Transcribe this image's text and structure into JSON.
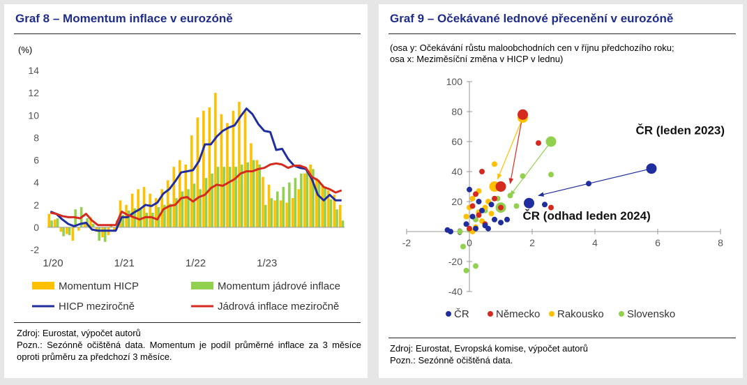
{
  "graf8": {
    "title": "Graf 8 – Momentum inflace v eurozóně",
    "source": "Zdroj: Eurostat, výpočet autorů",
    "note": "Pozn.: Sezónně očištěná data. Momentum je podíl průměrné inflace za 3 měsíce oproti průměru za předchozí 3 měsíce.",
    "colors": {
      "hicp_momentum": "#ffc000",
      "core_momentum": "#92d050",
      "hicp_yoy": "#1f2d9e",
      "core_yoy": "#d42a20"
    }
  },
  "graf9": {
    "title": "Graf 9 – Očekávané lednové přecenění v eurozóně",
    "axis_note_y": "(osa y: Očekávání růstu maloobchodních cen v říjnu předchozího roku;",
    "axis_note_x": "osa x: Meziměsíční změna v HICP v lednu)",
    "source": "Zdroj: Eurostat, Evropská komise, výpočet autorů",
    "note": "Pozn.: Sezónně očištěná data.",
    "colors": {
      "cr": "#1f2d9e",
      "nemecko": "#d42a20",
      "rakousko": "#ffc000",
      "slovensko": "#92d050"
    }
  },
  "chart_data": [
    {
      "type": "bar",
      "ylabel": "(%)",
      "ylim": [
        -2,
        14
      ],
      "yticks": [
        -2,
        0,
        2,
        4,
        6,
        8,
        10,
        12,
        14
      ],
      "x_tick_labels": [
        "1/20",
        "1/21",
        "1/22",
        "1/23"
      ],
      "x_tick_index": [
        0,
        12,
        24,
        36
      ],
      "legend_position": "bottom",
      "series": [
        {
          "name": "Momentum HICP",
          "kind": "bar",
          "values": [
            1.2,
            0.7,
            -0.4,
            -0.6,
            -1.2,
            -0.3,
            0.3,
            0.9,
            -0.4,
            -0.9,
            -0.7,
            -0.4,
            2.4,
            2.0,
            3.0,
            3.4,
            3.6,
            3.0,
            2.6,
            3.4,
            4.2,
            5.4,
            6.0,
            5.6,
            8.2,
            9.8,
            10.4,
            10.7,
            12.0,
            10.1,
            9.3,
            10.4,
            11.2,
            10.4,
            7.5,
            6.0,
            4.5,
            3.8,
            2.4,
            2.4,
            2.2,
            2.6,
            3.4,
            4.8,
            5.6,
            4.4,
            3.8,
            3.3,
            2.9,
            2.0
          ]
        },
        {
          "name": "Momentum jádrové inflace",
          "kind": "bar",
          "values": [
            0.6,
            0.8,
            -0.8,
            -0.7,
            1.6,
            1.8,
            0.8,
            0.3,
            -1.2,
            -1.3,
            0.3,
            0.6,
            1.1,
            1.5,
            1.7,
            1.6,
            1.3,
            1.3,
            1.8,
            2.0,
            2.1,
            2.6,
            3.2,
            3.4,
            3.9,
            3.4,
            4.4,
            4.8,
            5.4,
            5.4,
            5.4,
            5.4,
            5.6,
            5.8,
            6.0,
            5.6,
            2.0,
            2.6,
            3.2,
            3.6,
            4.0,
            4.4,
            4.8,
            5.0,
            5.2,
            4.2,
            3.5,
            2.5,
            1.6,
            0.6
          ]
        },
        {
          "name": "HICP meziročně",
          "kind": "line",
          "values": [
            1.4,
            1.2,
            0.7,
            0.3,
            0.1,
            0.3,
            0.4,
            -0.2,
            -0.3,
            -0.3,
            -0.3,
            -0.3,
            0.9,
            0.9,
            1.3,
            1.6,
            2.0,
            1.9,
            2.2,
            3.0,
            3.4,
            4.1,
            4.9,
            5.0,
            5.1,
            5.9,
            7.4,
            7.4,
            8.1,
            8.6,
            8.9,
            9.1,
            9.9,
            10.6,
            10.1,
            9.2,
            8.6,
            8.5,
            6.9,
            7.0,
            6.1,
            5.5,
            5.3,
            5.2,
            4.3,
            2.9,
            2.4,
            2.9,
            2.4,
            2.4
          ]
        },
        {
          "name": "Jádrová inflace meziročně",
          "kind": "line",
          "values": [
            1.3,
            1.2,
            1.0,
            0.9,
            0.9,
            0.8,
            1.2,
            0.6,
            0.2,
            0.2,
            0.2,
            0.2,
            1.4,
            1.1,
            0.9,
            0.7,
            0.9,
            0.9,
            0.7,
            1.6,
            1.9,
            2.0,
            2.6,
            2.7,
            2.3,
            2.7,
            2.9,
            3.5,
            3.8,
            3.7,
            4.0,
            4.3,
            4.8,
            5.0,
            5.0,
            5.2,
            5.3,
            5.6,
            5.7,
            5.6,
            5.3,
            5.5,
            5.5,
            5.3,
            4.5,
            4.2,
            3.6,
            3.4,
            3.1,
            3.3
          ]
        }
      ]
    },
    {
      "type": "scatter",
      "xlim": [
        -2,
        8
      ],
      "ylim": [
        -40,
        100
      ],
      "xticks": [
        -2,
        0,
        2,
        4,
        6,
        8
      ],
      "yticks": [
        -40,
        -20,
        0,
        20,
        40,
        60,
        80,
        100
      ],
      "legend_position": "bottom",
      "annotations": [
        {
          "text": "ČR (leden 2023)",
          "x": 5.3,
          "y": 65
        },
        {
          "text": "ČR (odhad leden 2024)",
          "x": 1.7,
          "y": 8
        }
      ],
      "arrows": [
        {
          "series": "ČR",
          "from": [
            5.8,
            42
          ],
          "to": [
            2.2,
            24
          ]
        },
        {
          "series": "Německo",
          "from": [
            1.7,
            78
          ],
          "to": [
            1.3,
            32
          ]
        },
        {
          "series": "Rakousko",
          "from": [
            1.7,
            76
          ],
          "to": [
            0.9,
            35
          ]
        },
        {
          "series": "Slovensko",
          "from": [
            2.6,
            60
          ],
          "to": [
            1.3,
            24
          ]
        }
      ],
      "series": [
        {
          "name": "ČR",
          "points": [
            [
              5.8,
              42
            ],
            [
              3.8,
              32
            ],
            [
              1.9,
              19
            ],
            [
              2.4,
              18
            ],
            [
              -0.7,
              1
            ],
            [
              -0.6,
              0
            ],
            [
              0.2,
              2
            ],
            [
              0.5,
              4
            ],
            [
              0.8,
              8
            ],
            [
              1.0,
              6
            ],
            [
              0.0,
              28
            ],
            [
              0.3,
              20
            ],
            [
              -0.1,
              5
            ],
            [
              0.4,
              14
            ],
            [
              0.1,
              10
            ],
            [
              0.6,
              2
            ],
            [
              0.7,
              18
            ],
            [
              1.2,
              8
            ]
          ],
          "large": [
            0,
            2
          ]
        },
        {
          "name": "Německo",
          "points": [
            [
              1.7,
              78
            ],
            [
              1.0,
              30
            ],
            [
              2.2,
              59
            ],
            [
              2.6,
              16
            ],
            [
              0.4,
              40
            ],
            [
              0.2,
              25
            ],
            [
              0.1,
              17
            ],
            [
              0.5,
              5
            ],
            [
              0.0,
              2
            ],
            [
              0.8,
              22
            ],
            [
              1.0,
              16
            ],
            [
              0.3,
              11
            ]
          ],
          "large": [
            0,
            1
          ]
        },
        {
          "name": "Rakousko",
          "points": [
            [
              1.7,
              76
            ],
            [
              0.8,
              30
            ],
            [
              0.8,
              45
            ],
            [
              0.0,
              16
            ],
            [
              0.3,
              13
            ],
            [
              0.6,
              20
            ],
            [
              0.1,
              22
            ],
            [
              -0.1,
              10
            ],
            [
              0.4,
              7
            ],
            [
              0.2,
              3
            ],
            [
              0.5,
              16
            ],
            [
              0.7,
              12
            ],
            [
              0.1,
              0
            ],
            [
              0.3,
              27
            ]
          ],
          "large": [
            0,
            1
          ]
        },
        {
          "name": "Slovensko",
          "points": [
            [
              2.6,
              60
            ],
            [
              1.0,
              16
            ],
            [
              1.7,
              37
            ],
            [
              2.6,
              38
            ],
            [
              1.3,
              24
            ],
            [
              0.2,
              -23
            ],
            [
              -0.2,
              -10
            ],
            [
              -0.1,
              -26
            ],
            [
              1.5,
              17
            ],
            [
              0.9,
              22
            ],
            [
              0.5,
              14
            ],
            [
              0.2,
              8
            ],
            [
              -0.3,
              0
            ],
            [
              0.0,
              1
            ]
          ],
          "large": [
            0,
            1
          ]
        }
      ]
    }
  ]
}
